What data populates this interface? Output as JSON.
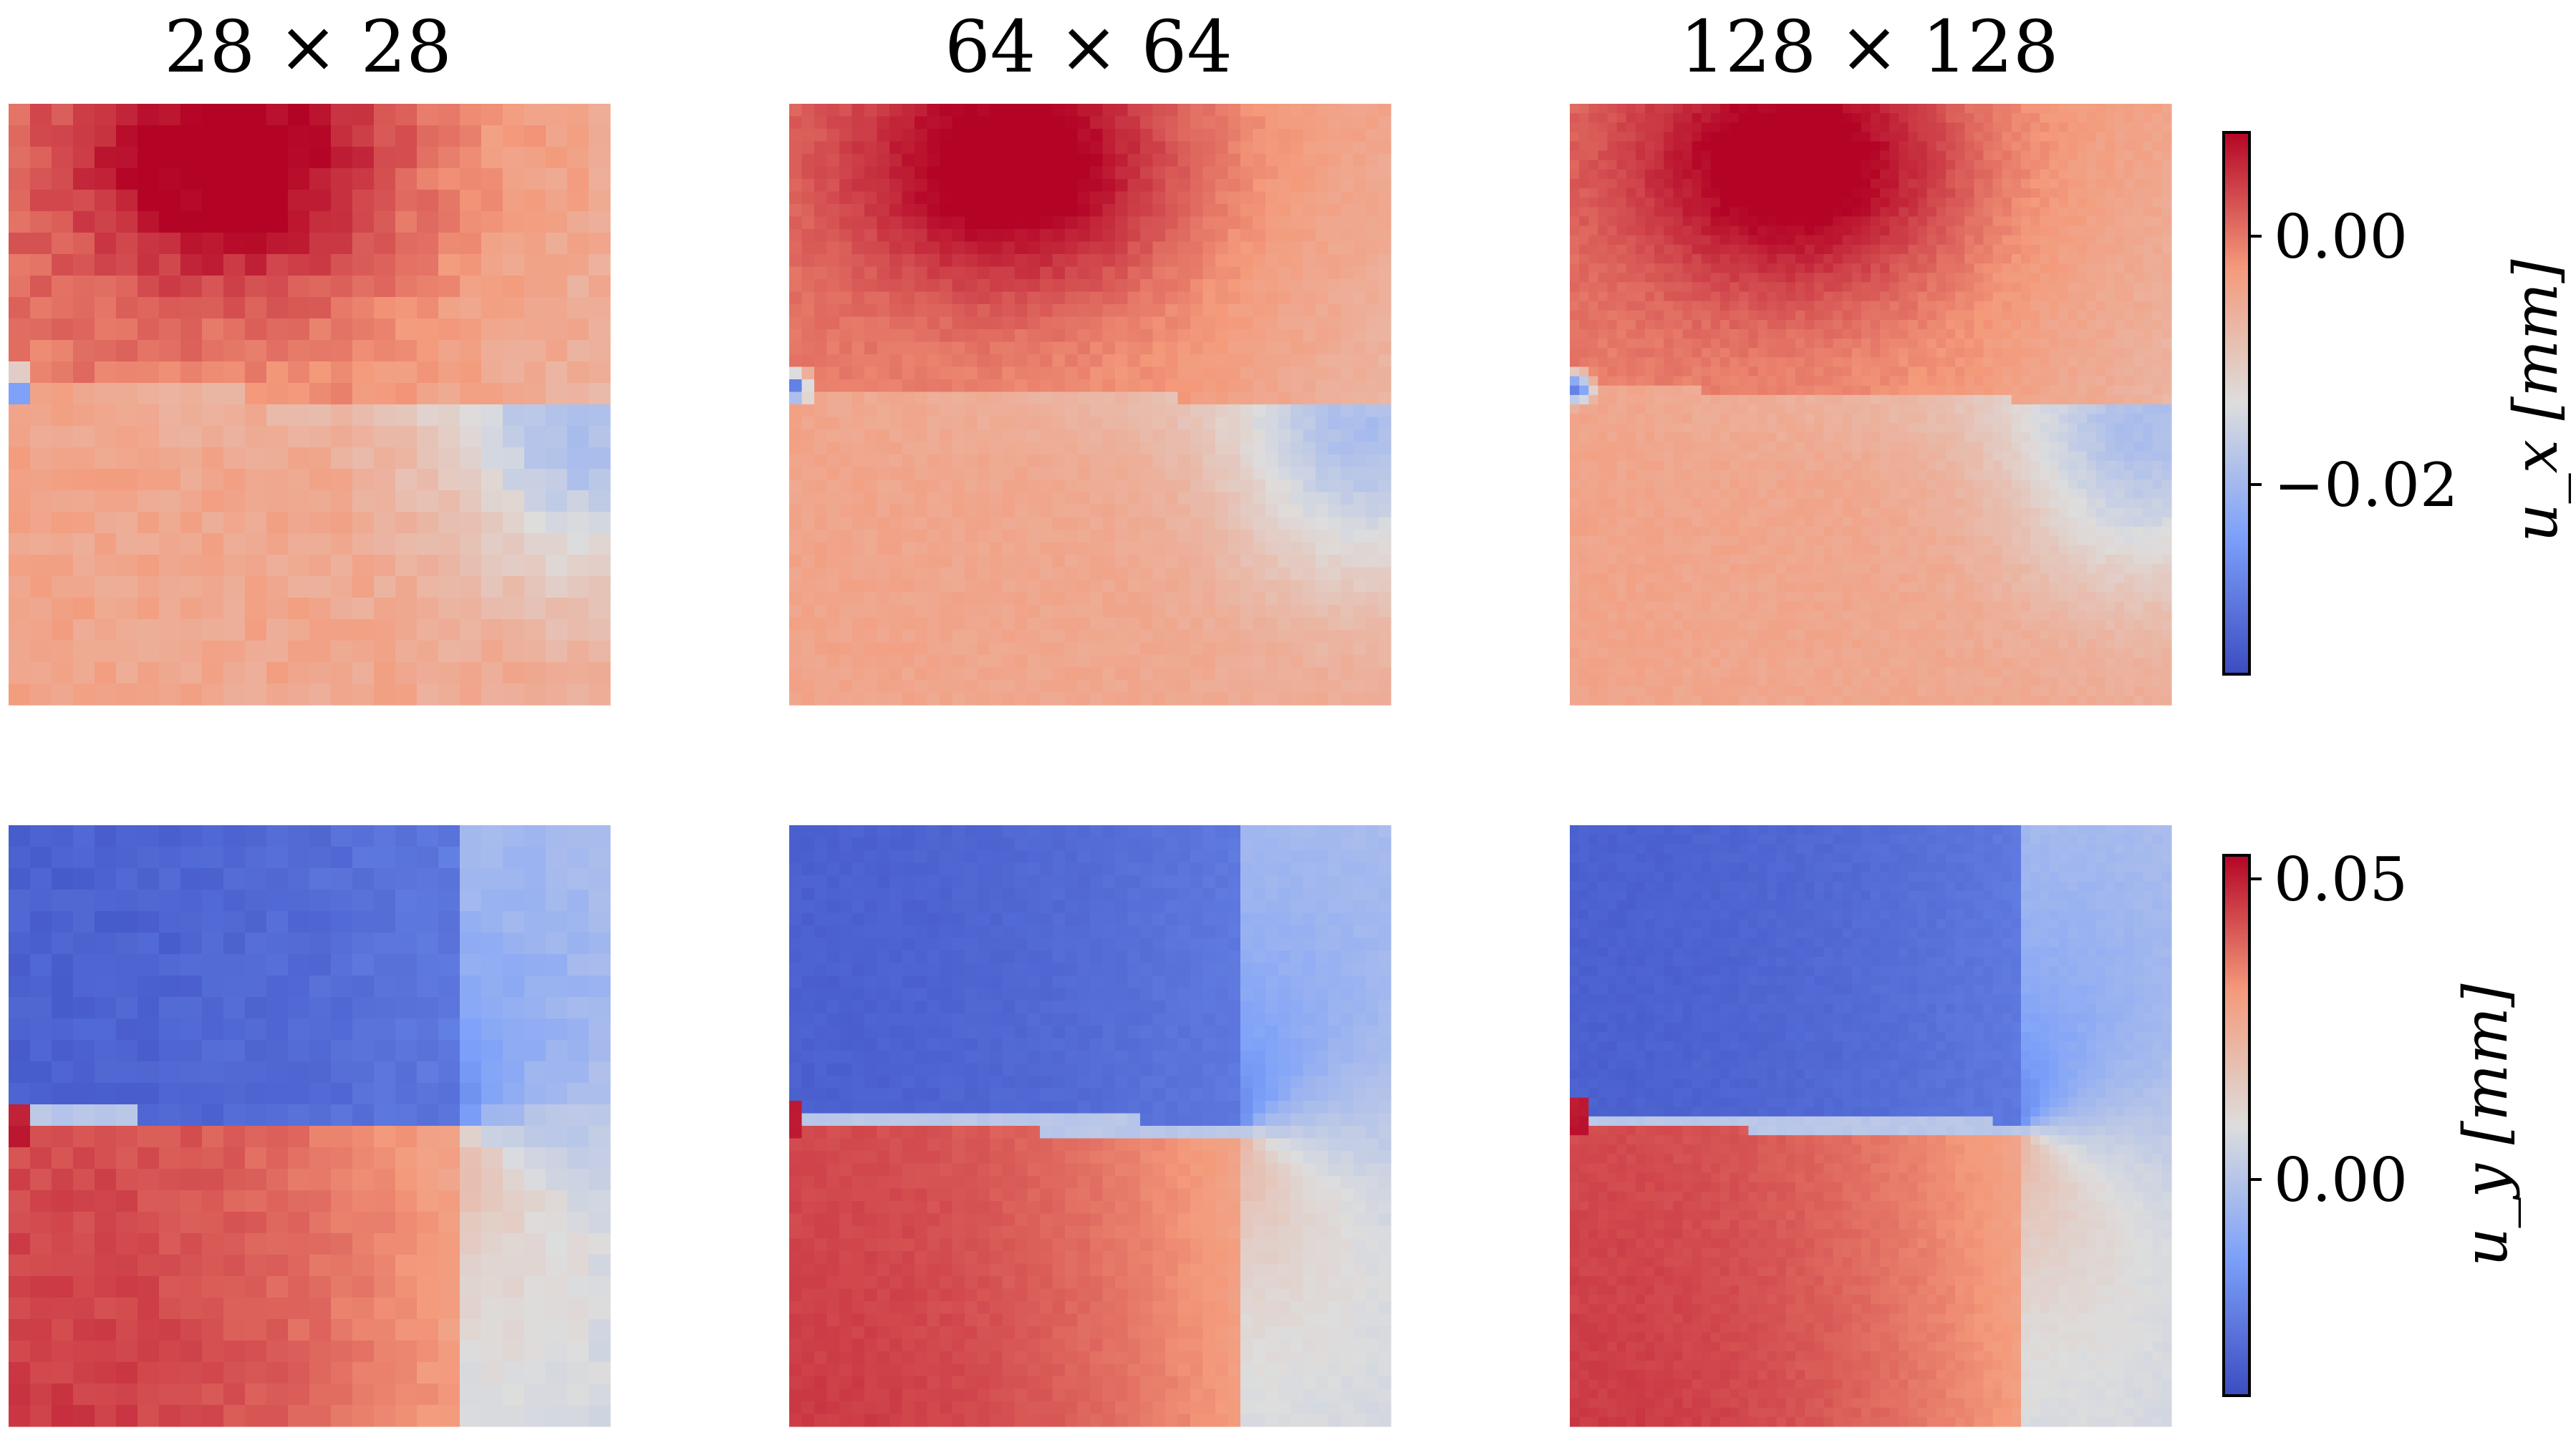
{
  "column_titles": [
    "28 × 28",
    "64 × 64",
    "128 × 128"
  ],
  "colorbars": {
    "ux": {
      "label": "u_x [mm]",
      "ticks": [
        {
          "value": 0.0,
          "label": "0.00"
        },
        {
          "value": -0.02,
          "label": "−0.02"
        }
      ]
    },
    "uy": {
      "label": "u_y [mm]",
      "ticks": [
        {
          "value": 0.05,
          "label": "0.05"
        },
        {
          "value": 0.0,
          "label": "0.00"
        }
      ]
    }
  },
  "colors": {
    "colormap": "coolwarm",
    "cold": "#3b4cc0",
    "neutral": "#dddddd",
    "warm": "#b40426"
  },
  "chart_data": {
    "type": "heatmap",
    "colormap": "coolwarm",
    "columns": [
      "28 × 28",
      "64 × 64",
      "128 × 128"
    ],
    "grid_sizes": [
      28,
      64,
      128
    ],
    "rows": [
      {
        "field": "u_x",
        "unit": "mm",
        "vmin": -0.037,
        "vmax": 0.008,
        "description_of_field": "warm (positive) above the crack line, peaking near top-center; cool (negative) band along the crack and toward the right; mildly positive below",
        "approx_values": {
          "top_center_max": 0.008,
          "crack_tip_min": -0.037,
          "right_side_below_crack": -0.015,
          "bottom_region": -0.005
        }
      },
      {
        "field": "u_y",
        "unit": "mm",
        "vmin": -0.04,
        "vmax": 0.053,
        "description_of_field": "strongly negative above the crack, strongly positive below the crack, transition fan toward the right edge",
        "approx_values": {
          "above_crack": -0.035,
          "below_crack": 0.04,
          "right_edge": 0.0
        }
      }
    ]
  }
}
